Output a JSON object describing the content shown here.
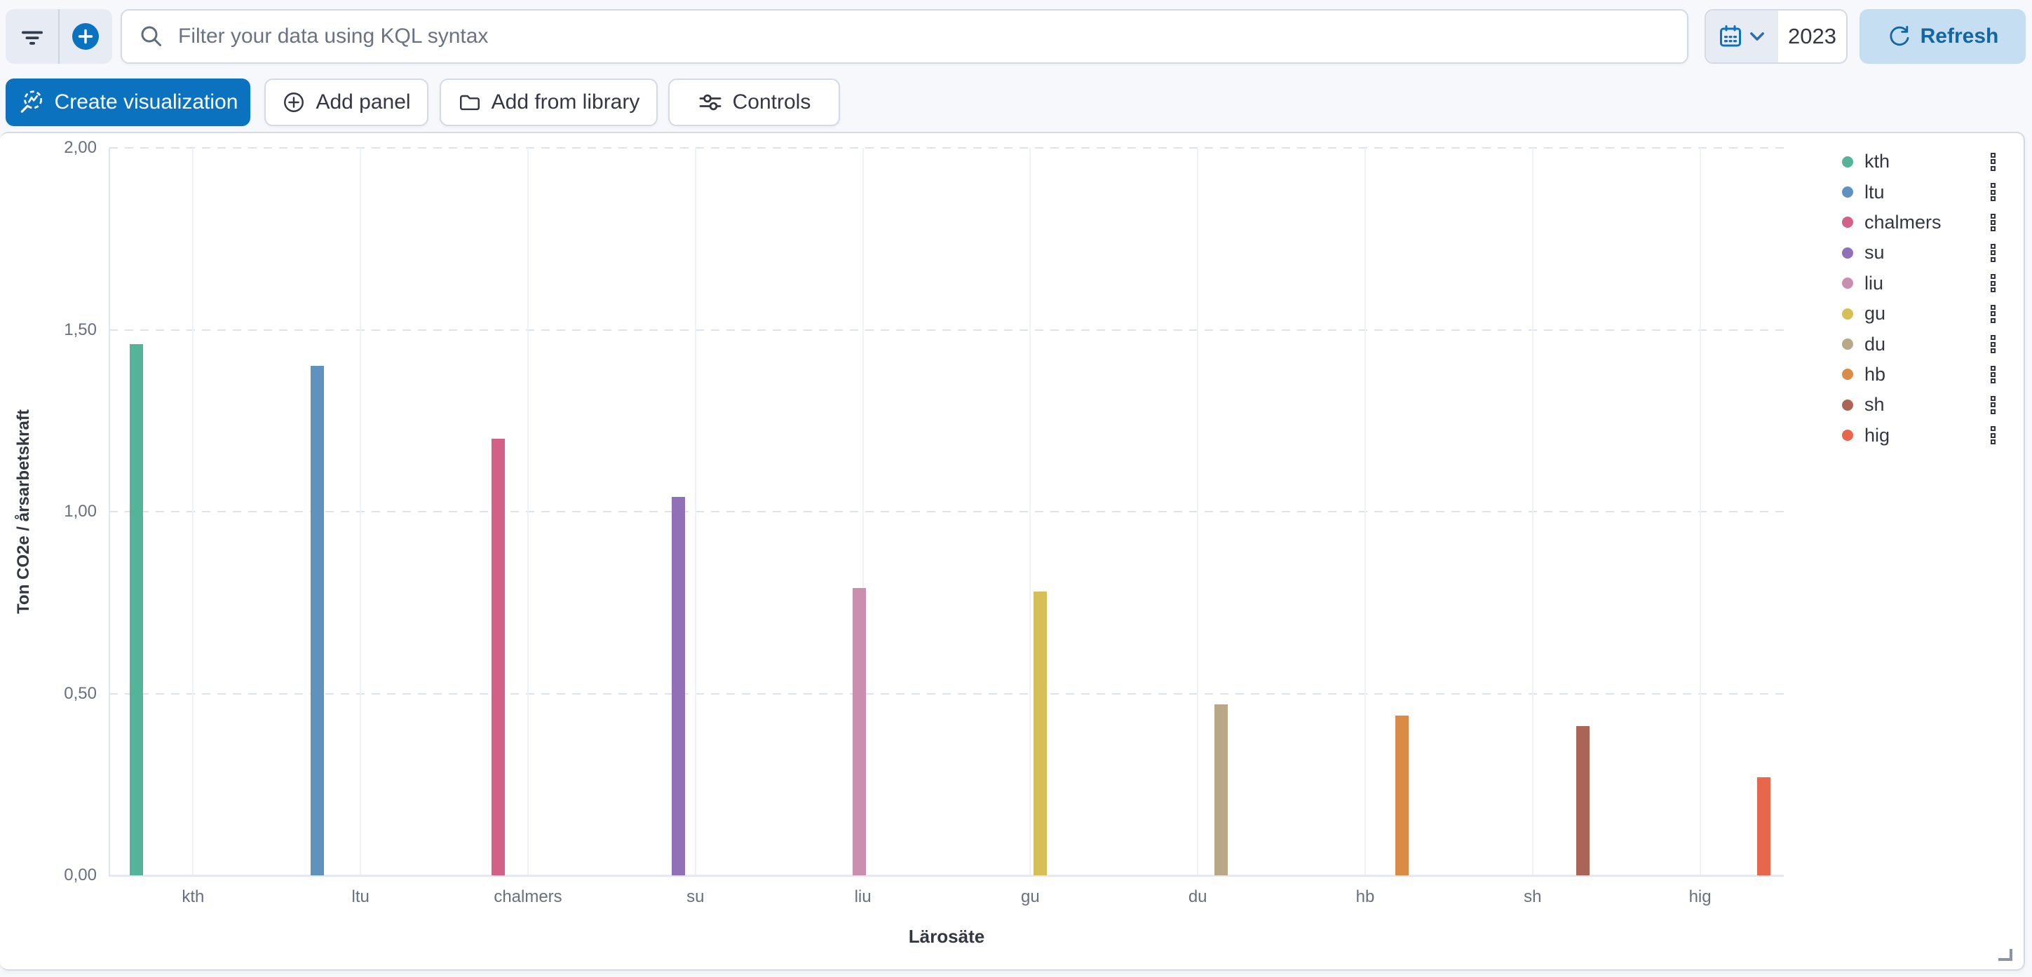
{
  "filter_bar": {
    "search_placeholder": "Filter your data using KQL syntax",
    "date_value": "2023",
    "refresh_label": "Refresh"
  },
  "dashboard_toolbar": {
    "create_visualization_label": "Create visualization",
    "add_panel_label": "Add panel",
    "add_from_library_label": "Add from library",
    "controls_label": "Controls"
  },
  "icons": {
    "filters": "filter-funnel-bars",
    "add_filter": "plus-in-blue-circle",
    "search": "magnifying-glass",
    "date_picker": "calendar",
    "date_picker_expand": "chevron-down",
    "refresh": "circular-arrow",
    "create_visualization": "lens-magnifier-with-chart",
    "add_panel": "plus-circle-outline",
    "add_from_library": "folder",
    "controls": "horizontal-sliders",
    "legend_item_actions": "boxes-vertical",
    "panel_resize": "corner-angle"
  },
  "colors": {
    "primary": "#0b72c0",
    "refresh_bg": "#c5def2",
    "refresh_text": "#14669f",
    "panel_border": "#d3dae6",
    "page_bg": "#f6f8fb",
    "text": "#343741",
    "tick_text": "#69707d"
  },
  "chart_data": {
    "type": "bar",
    "title": "",
    "categories": [
      "kth",
      "ltu",
      "chalmers",
      "su",
      "liu",
      "gu",
      "du",
      "hb",
      "sh",
      "hig"
    ],
    "values": [
      1.46,
      1.4,
      1.2,
      1.04,
      0.79,
      0.78,
      0.47,
      0.44,
      0.41,
      0.27
    ],
    "series_colors": [
      "#54B399",
      "#6092C0",
      "#D36086",
      "#9170B8",
      "#CA8EAE",
      "#D6BF57",
      "#B9A888",
      "#DA8B45",
      "#AA6556",
      "#E7664C"
    ],
    "xlabel": "Lärosäte",
    "ylabel": "Ton CO2e / årsarbetskraft",
    "ylim": [
      0,
      2
    ],
    "ytick_labels": [
      "0,00",
      "0,50",
      "1,00",
      "1,50",
      "2,00"
    ],
    "grid": true,
    "legend_position": "right",
    "legend": [
      "kth",
      "ltu",
      "chalmers",
      "su",
      "liu",
      "gu",
      "du",
      "hb",
      "sh",
      "hig"
    ]
  }
}
